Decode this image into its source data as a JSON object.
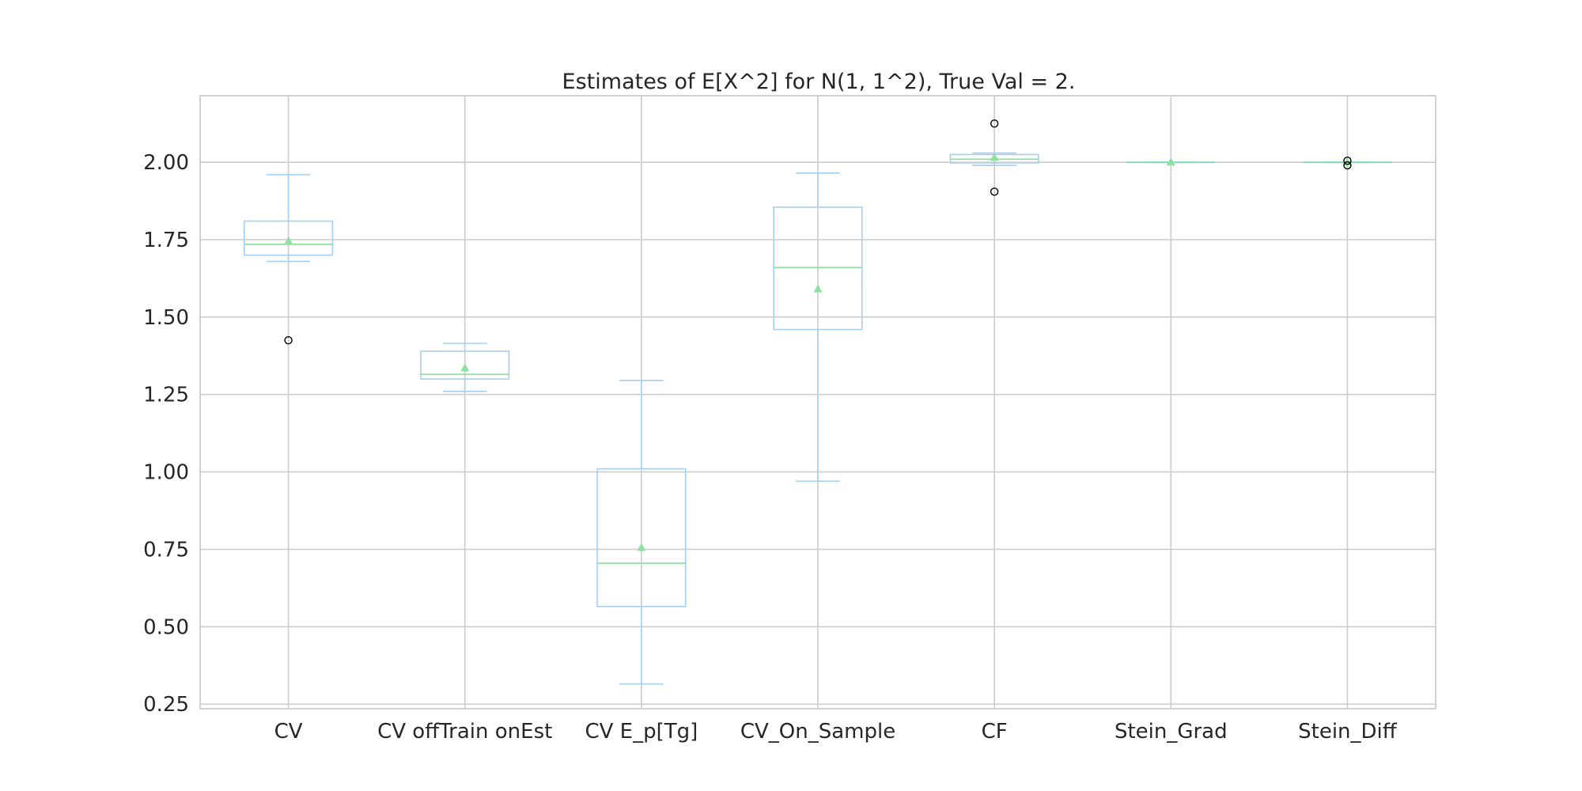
{
  "chart_data": {
    "type": "box",
    "title": "Estimates of E[X^2] for N(1, 1^2), True Val = 2.",
    "xlabel": "",
    "ylabel": "",
    "ylim": [
      0.235,
      2.215
    ],
    "yticks": [
      0.25,
      0.5,
      0.75,
      1.0,
      1.25,
      1.5,
      1.75,
      2.0
    ],
    "ytick_labels": [
      "0.25",
      "0.50",
      "0.75",
      "1.00",
      "1.25",
      "1.50",
      "1.75",
      "2.00"
    ],
    "grid": true,
    "colors": {
      "box": "#a8cff0",
      "median": "#8ee0a0",
      "mean_marker": "#8ee0a0",
      "outlier_edge": "#000000",
      "grid": "#cccccc",
      "axes_edge": "#cccccc"
    },
    "series": [
      {
        "label": "CV",
        "whislo": 1.68,
        "q1": 1.7,
        "median": 1.735,
        "q3": 1.81,
        "whishi": 1.96,
        "mean": 1.745,
        "outliers": [
          1.425
        ]
      },
      {
        "label": "CV offTrain onEst",
        "whislo": 1.26,
        "q1": 1.3,
        "median": 1.315,
        "q3": 1.39,
        "whishi": 1.415,
        "mean": 1.335,
        "outliers": []
      },
      {
        "label": "CV E_p[Tg]",
        "whislo": 0.315,
        "q1": 0.565,
        "median": 0.705,
        "q3": 1.01,
        "whishi": 1.295,
        "mean": 0.755,
        "outliers": []
      },
      {
        "label": "CV_On_Sample",
        "whislo": 0.97,
        "q1": 1.46,
        "median": 1.66,
        "q3": 1.855,
        "whishi": 1.965,
        "mean": 1.59,
        "outliers": []
      },
      {
        "label": "CF",
        "whislo": 1.99,
        "q1": 1.998,
        "median": 2.01,
        "q3": 2.025,
        "whishi": 2.03,
        "mean": 2.015,
        "outliers": [
          2.125,
          1.905
        ]
      },
      {
        "label": "Stein_Grad",
        "whislo": 1.999,
        "q1": 1.9995,
        "median": 2.0,
        "q3": 2.0005,
        "whishi": 2.001,
        "mean": 2.0,
        "outliers": []
      },
      {
        "label": "Stein_Diff",
        "whislo": 1.999,
        "q1": 1.9995,
        "median": 2.0,
        "q3": 2.0005,
        "whishi": 2.001,
        "mean": 2.0,
        "outliers": [
          2.005,
          1.99
        ]
      }
    ]
  }
}
